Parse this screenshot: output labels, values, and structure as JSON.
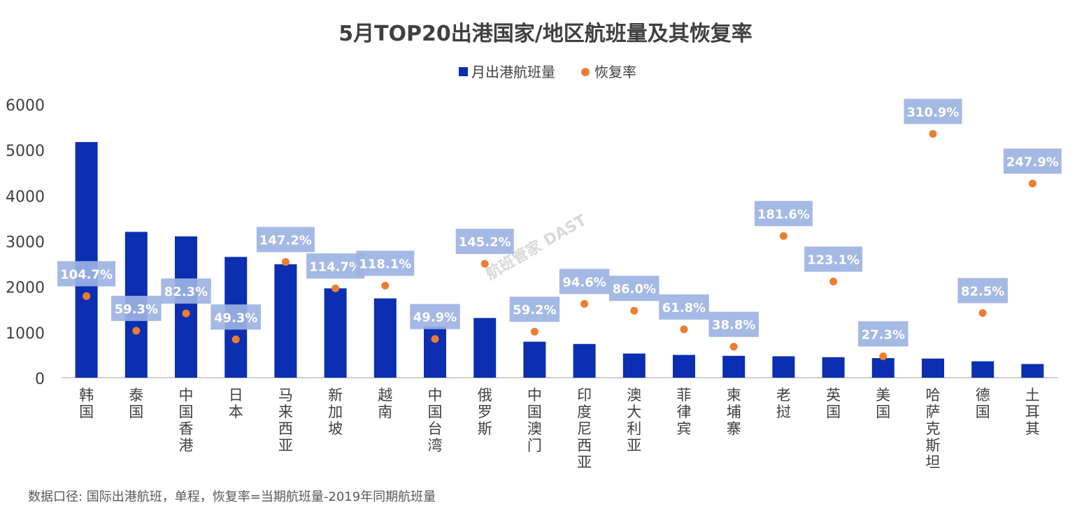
{
  "chart_data": {
    "type": "bar",
    "title": "5月TOP20出港国家/地区航班量及其恢复率",
    "categories": [
      "韩国",
      "泰国",
      "中国香港",
      "日本",
      "马来西亚",
      "新加坡",
      "越南",
      "中国台湾",
      "俄罗斯",
      "中国澳门",
      "印度尼西亚",
      "澳大利亚",
      "菲律宾",
      "柬埔寨",
      "老挝",
      "英国",
      "美国",
      "哈萨克斯坦",
      "德国",
      "土耳其"
    ],
    "series": [
      {
        "name": "月出港航班量",
        "kind": "bar",
        "color": "#0B2FB0",
        "values": [
          5170,
          3200,
          3100,
          2650,
          2490,
          1960,
          1740,
          1120,
          1310,
          790,
          740,
          530,
          500,
          480,
          470,
          450,
          430,
          420,
          360,
          300
        ]
      },
      {
        "name": "恢复率",
        "kind": "scatter",
        "color": "#ED7D31",
        "values": [
          104.7,
          59.3,
          82.3,
          49.3,
          147.2,
          114.7,
          118.1,
          49.9,
          145.2,
          59.2,
          94.6,
          86.0,
          61.8,
          38.8,
          181.6,
          123.1,
          27.3,
          310.9,
          82.5,
          247.9
        ],
        "point_y": [
          1790,
          1030,
          1410,
          840,
          2540,
          1960,
          2020,
          850,
          2500,
          1010,
          1620,
          1470,
          1060,
          680,
          3110,
          2110,
          470,
          5350,
          1420,
          4260
        ],
        "labels": [
          "104.7%",
          "59.3%",
          "82.3%",
          "49.3%",
          "147.2%",
          "114.7%",
          "118.1%",
          "49.9%",
          "145.2%",
          "59.2%",
          "94.6%",
          "86.0%",
          "61.8%",
          "38.8%",
          "181.6%",
          "123.1%",
          "27.3%",
          "310.9%",
          "82.5%",
          "247.9%"
        ]
      }
    ],
    "yticks": [
      "0",
      "1000",
      "2000",
      "3000",
      "4000",
      "5000",
      "6000"
    ],
    "ylim": [
      0,
      6000
    ],
    "legend_position": "top",
    "grid": false
  },
  "note": "数据口径: 国际出港航班，单程，恢复率=当期航班量-2019年同期航班量",
  "watermark": "航班管家 DAST"
}
